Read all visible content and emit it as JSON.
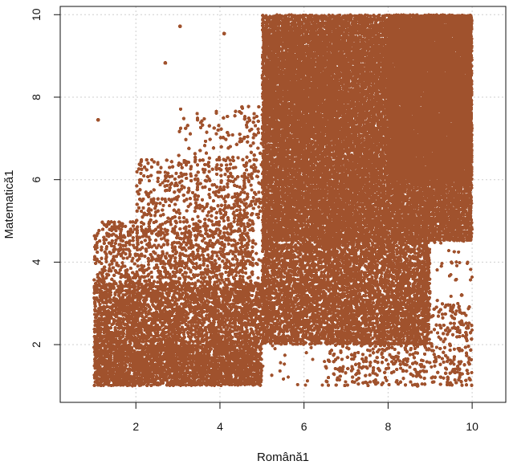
{
  "chart_data": {
    "type": "scatter",
    "title": "",
    "xlabel": "Română1",
    "ylabel": "Matematică1",
    "xlim": [
      0.2,
      10.8
    ],
    "ylim": [
      0.6,
      10.2
    ],
    "x_ticks": [
      2,
      4,
      6,
      8,
      10
    ],
    "y_ticks": [
      2,
      4,
      6,
      8,
      10
    ],
    "grid": true,
    "legend": "none",
    "point_color": "#A0522D",
    "series": [
      {
        "density_regions": [
          {
            "x_range": [
              1.0,
              5.0
            ],
            "y_range": [
              1.0,
              2.0
            ],
            "density": 0.95
          },
          {
            "x_range": [
              1.0,
              5.0
            ],
            "y_range": [
              2.0,
              3.5
            ],
            "density": 0.78
          },
          {
            "x_range": [
              1.0,
              4.8
            ],
            "y_range": [
              3.5,
              5.0
            ],
            "density": 0.42
          },
          {
            "x_range": [
              2.0,
              5.0
            ],
            "y_range": [
              5.0,
              6.5
            ],
            "density": 0.28
          },
          {
            "x_range": [
              3.0,
              5.0
            ],
            "y_range": [
              6.5,
              7.8
            ],
            "density": 0.12
          },
          {
            "x_range": [
              5.0,
              10.0
            ],
            "y_range": [
              4.5,
              10.0
            ],
            "density": 0.99
          },
          {
            "x_range": [
              5.0,
              9.0
            ],
            "y_range": [
              2.0,
              4.5
            ],
            "density": 0.84
          },
          {
            "x_range": [
              6.5,
              10.0
            ],
            "y_range": [
              1.0,
              3.0
            ],
            "density": 0.22
          },
          {
            "x_range": [
              5.0,
              7.0
            ],
            "y_range": [
              7.0,
              9.5
            ],
            "density": 0.34
          },
          {
            "x_range": [
              8.0,
              10.0
            ],
            "y_range": [
              6.0,
              10.0
            ],
            "density": 1.0
          }
        ],
        "outliers": [
          [
            1.1,
            7.45
          ],
          [
            3.05,
            9.72
          ],
          [
            2.7,
            8.83
          ],
          [
            4.1,
            9.54
          ],
          [
            8.7,
            1.0
          ],
          [
            9.5,
            2.9
          ],
          [
            9.75,
            3.2
          ]
        ]
      }
    ]
  }
}
